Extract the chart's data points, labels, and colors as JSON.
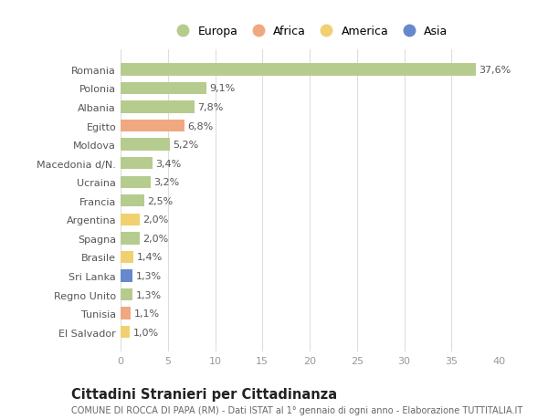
{
  "countries": [
    "Romania",
    "Polonia",
    "Albania",
    "Egitto",
    "Moldova",
    "Macedonia d/N.",
    "Ucraina",
    "Francia",
    "Argentina",
    "Spagna",
    "Brasile",
    "Sri Lanka",
    "Regno Unito",
    "Tunisia",
    "El Salvador"
  ],
  "values": [
    37.6,
    9.1,
    7.8,
    6.8,
    5.2,
    3.4,
    3.2,
    2.5,
    2.0,
    2.0,
    1.4,
    1.3,
    1.3,
    1.1,
    1.0
  ],
  "labels": [
    "37,6%",
    "9,1%",
    "7,8%",
    "6,8%",
    "5,2%",
    "3,4%",
    "3,2%",
    "2,5%",
    "2,0%",
    "2,0%",
    "1,4%",
    "1,3%",
    "1,3%",
    "1,1%",
    "1,0%"
  ],
  "continents": [
    "Europa",
    "Europa",
    "Europa",
    "Africa",
    "Europa",
    "Europa",
    "Europa",
    "Europa",
    "America",
    "Europa",
    "America",
    "Asia",
    "Europa",
    "Africa",
    "America"
  ],
  "colors": {
    "Europa": "#b5cc8e",
    "Africa": "#f0a880",
    "America": "#f0d070",
    "Asia": "#6688cc"
  },
  "xlim": [
    0,
    40
  ],
  "xticks": [
    0,
    5,
    10,
    15,
    20,
    25,
    30,
    35,
    40
  ],
  "title": "Cittadini Stranieri per Cittadinanza",
  "subtitle": "COMUNE DI ROCCA DI PAPA (RM) - Dati ISTAT al 1° gennaio di ogni anno - Elaborazione TUTTITALIA.IT",
  "background_color": "#ffffff",
  "grid_color": "#dddddd",
  "bar_height": 0.65,
  "label_fontsize": 8,
  "tick_fontsize": 8,
  "title_fontsize": 10.5,
  "subtitle_fontsize": 7,
  "legend_order": [
    "Europa",
    "Africa",
    "America",
    "Asia"
  ]
}
